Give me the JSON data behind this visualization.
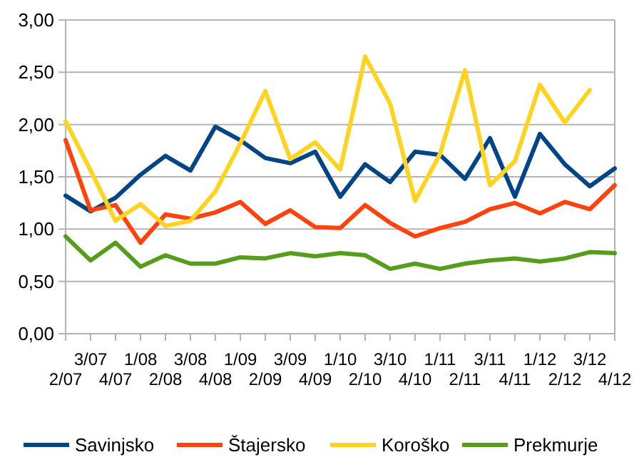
{
  "chart_data": {
    "type": "line",
    "categories": [
      "2/07",
      "3/07",
      "4/07",
      "1/08",
      "2/08",
      "3/08",
      "4/08",
      "1/09",
      "2/09",
      "3/09",
      "4/09",
      "1/10",
      "2/10",
      "3/10",
      "4/10",
      "1/11",
      "2/11",
      "3/11",
      "4/11",
      "1/12",
      "2/12",
      "3/12",
      "4/12"
    ],
    "series": [
      {
        "name": "Savinjsko",
        "color": "#004586",
        "values": [
          1.32,
          1.17,
          1.3,
          1.52,
          1.7,
          1.56,
          1.98,
          1.85,
          1.68,
          1.63,
          1.74,
          1.31,
          1.62,
          1.45,
          1.74,
          1.71,
          1.48,
          1.87,
          1.31,
          1.91,
          1.62,
          1.41,
          1.58
        ]
      },
      {
        "name": "Štajersko",
        "color": "#ff420e",
        "values": [
          1.85,
          1.18,
          1.23,
          0.87,
          1.14,
          1.1,
          1.16,
          1.26,
          1.05,
          1.18,
          1.02,
          1.01,
          1.23,
          1.06,
          0.93,
          1.01,
          1.07,
          1.19,
          1.25,
          1.15,
          1.26,
          1.19,
          1.42
        ]
      },
      {
        "name": "Koroško",
        "color": "#ffd320",
        "values": [
          2.03,
          1.56,
          1.08,
          1.24,
          1.03,
          1.08,
          1.36,
          1.82,
          2.32,
          1.67,
          1.83,
          1.57,
          2.65,
          2.2,
          1.27,
          1.72,
          2.52,
          1.42,
          1.65,
          2.38,
          2.02,
          2.33,
          null
        ]
      },
      {
        "name": "Prekmurje",
        "color": "#579d1c",
        "values": [
          0.93,
          0.7,
          0.87,
          0.64,
          0.75,
          0.67,
          0.67,
          0.73,
          0.72,
          0.77,
          0.74,
          0.77,
          0.75,
          0.62,
          0.67,
          0.62,
          0.67,
          0.7,
          0.72,
          0.69,
          0.72,
          0.78,
          0.77
        ]
      }
    ],
    "ylim": [
      0,
      3
    ],
    "yticks": [
      {
        "value": 0,
        "label": "0,00"
      },
      {
        "value": 0.5,
        "label": "0,50"
      },
      {
        "value": 1,
        "label": "1,00"
      },
      {
        "value": 1.5,
        "label": "1,50"
      },
      {
        "value": 2,
        "label": "2,00"
      },
      {
        "value": 2.5,
        "label": "2,50"
      },
      {
        "value": 3,
        "label": "3,00"
      }
    ],
    "grid": "y",
    "legend": "bottom",
    "marker": "none",
    "line_style": "solid"
  }
}
